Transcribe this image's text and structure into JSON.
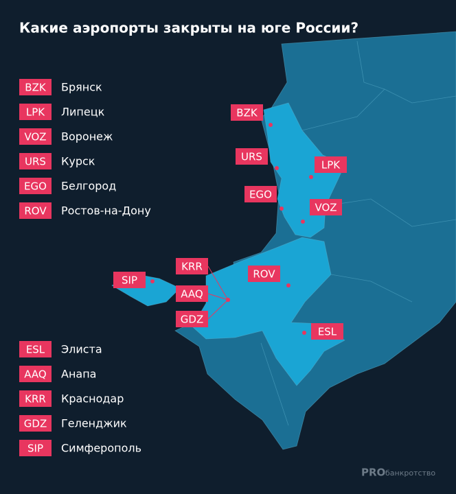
{
  "title": "Какие аэропорты закрыты на юге России?",
  "legend_top": [
    {
      "code": "BZK",
      "city": "Брянск"
    },
    {
      "code": "LPK",
      "city": "Липецк"
    },
    {
      "code": "VOZ",
      "city": "Воронеж"
    },
    {
      "code": "URS",
      "city": "Курск"
    },
    {
      "code": "EGO",
      "city": "Белгород"
    },
    {
      "code": "ROV",
      "city": "Ростов-на-Дону"
    }
  ],
  "legend_bottom": [
    {
      "code": "ESL",
      "city": "Элиста"
    },
    {
      "code": "AAQ",
      "city": "Анапа"
    },
    {
      "code": "KRR",
      "city": "Краснодар"
    },
    {
      "code": "GDZ",
      "city": "Геленджик"
    },
    {
      "code": "SIP",
      "city": "Симферополь"
    }
  ],
  "footer": {
    "brand": "PRO",
    "suffix": "банкротство"
  }
}
